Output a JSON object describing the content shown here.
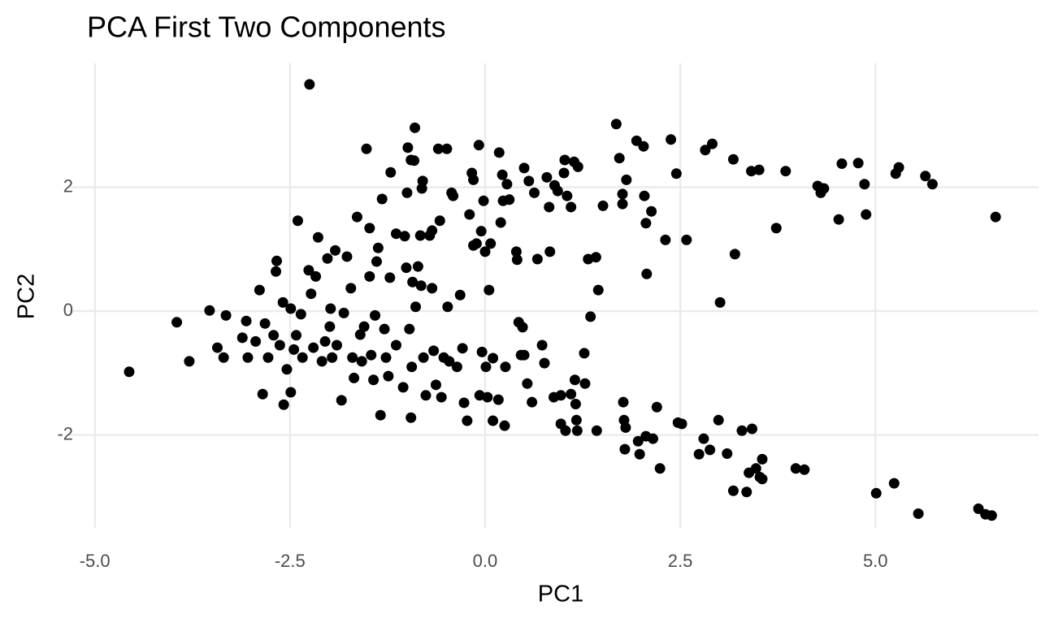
{
  "chart_data": {
    "type": "scatter",
    "title": "PCA First Two Components",
    "x_label": "PC1",
    "y_label": "PC2",
    "xlim": [
      -5.33,
      7.09
    ],
    "ylim": [
      -3.5,
      4.0
    ],
    "xticks": [
      {
        "value": -5.0,
        "label": "-5.0"
      },
      {
        "value": -2.5,
        "label": "-2.5"
      },
      {
        "value": 0.0,
        "label": "0.0"
      },
      2.5,
      {
        "value": 5.0,
        "label": "5.0"
      }
    ],
    "yticks": [
      -2,
      0,
      2
    ],
    "grid": true,
    "color": "#000000",
    "x": [
      -2.25,
      -4.56,
      -3.95,
      -3.79,
      -3.53,
      -3.32,
      -3.43,
      -3.35,
      -3.11,
      -3.06,
      -3.04,
      -2.94,
      -2.89,
      -2.85,
      -2.82,
      -2.78,
      -2.71,
      -2.68,
      -2.67,
      -2.63,
      -2.59,
      -2.58,
      -2.54,
      -2.49,
      -2.49,
      -2.45,
      -2.42,
      -2.4,
      -2.36,
      -2.34,
      -2.26,
      -2.23,
      -2.2,
      -2.17,
      -2.14,
      -2.09,
      -2.05,
      -2.02,
      -1.99,
      -1.98,
      -1.96,
      -1.92,
      -1.9,
      -1.84,
      -1.81,
      -1.77,
      -1.72,
      -1.7,
      -1.68,
      -1.64,
      -1.6,
      -1.58,
      -1.55,
      -1.52,
      -1.48,
      -1.48,
      -1.46,
      -1.43,
      -1.41,
      -1.39,
      -1.37,
      -1.34,
      -1.32,
      -1.29,
      -1.27,
      -1.24,
      -1.22,
      -1.21,
      -1.14,
      -1.14,
      -1.05,
      -1.03,
      -1.01,
      -1.0,
      -0.99,
      -0.97,
      -0.95,
      -0.94,
      -0.95,
      -0.93,
      -0.91,
      -0.9,
      -0.89,
      -0.86,
      -0.83,
      -0.82,
      -0.81,
      -0.8,
      -0.79,
      -0.76,
      -0.71,
      -0.68,
      -0.68,
      -0.66,
      -0.63,
      -0.6,
      -0.58,
      -0.56,
      -0.53,
      -0.49,
      -0.48,
      -0.46,
      -0.43,
      -0.41,
      -0.36,
      -0.32,
      -0.29,
      -0.27,
      -0.23,
      -0.2,
      -0.17,
      -0.15,
      -0.15,
      -0.11,
      -0.08,
      -0.07,
      -0.05,
      -0.04,
      -0.02,
      0,
      0.01,
      0.03,
      0.05,
      0.07,
      0.1,
      0.1,
      0.17,
      0.18,
      0.2,
      0.22,
      0.23,
      0.25,
      0.26,
      0.28,
      0.31,
      0.4,
      0.41,
      0.43,
      0.46,
      0.48,
      0.5,
      0.5,
      0.54,
      0.56,
      0.6,
      0.63,
      0.67,
      0.73,
      0.76,
      0.79,
      0.82,
      0.83,
      0.88,
      0.89,
      0.93,
      0.97,
      0.97,
      1.01,
      1.02,
      1.03,
      1.05,
      1.1,
      1.1,
      1.14,
      1.15,
      1.16,
      1.17,
      1.18,
      1.19,
      1.27,
      1.28,
      1.32,
      1.35,
      1.42,
      1.43,
      1.45,
      1.51,
      1.68,
      1.72,
      1.76,
      1.76,
      1.77,
      1.78,
      1.79,
      1.8,
      1.81,
      1.94,
      1.96,
      1.98,
      2.03,
      2.04,
      2.06,
      2.06,
      2.07,
      2.13,
      2.15,
      2.2,
      2.24,
      2.31,
      2.38,
      2.45,
      2.47,
      2.52,
      2.58,
      2.74,
      2.8,
      2.82,
      2.88,
      2.91,
      2.99,
      3.01,
      3.1,
      3.18,
      3.18,
      3.2,
      3.29,
      3.35,
      3.38,
      3.41,
      3.42,
      3.47,
      3.51,
      3.52,
      3.55,
      3.55,
      3.73,
      3.85,
      3.98,
      4.09,
      4.26,
      4.3,
      4.34,
      4.53,
      4.57,
      4.78,
      4.86,
      4.88,
      5.01,
      5.24,
      5.26,
      5.3,
      5.55,
      5.64,
      5.73,
      6.32,
      6.41,
      6.49,
      6.54
    ],
    "values": [
      3.66,
      -0.98,
      -0.18,
      -0.81,
      0.01,
      -0.07,
      -0.59,
      -0.75,
      -0.43,
      -0.16,
      -0.75,
      -0.49,
      0.34,
      -1.34,
      -0.2,
      -0.75,
      -0.39,
      0.64,
      0.81,
      -0.55,
      0.14,
      -1.51,
      -0.94,
      -1.31,
      0.04,
      -0.62,
      -0.39,
      1.46,
      -0.05,
      -0.75,
      0.66,
      0.28,
      -0.59,
      0.56,
      1.19,
      -0.81,
      -0.49,
      0.85,
      -0.25,
      0.04,
      -0.75,
      0.98,
      -0.55,
      -1.44,
      -0.03,
      0.88,
      0.37,
      -0.75,
      -1.08,
      1.52,
      -0.38,
      -0.81,
      -0.25,
      2.62,
      1.34,
      0.56,
      -0.71,
      -1.11,
      -0.07,
      0.8,
      1.02,
      -1.68,
      1.81,
      -0.29,
      -0.75,
      -1.05,
      0.54,
      2.24,
      1.25,
      -0.55,
      -1.23,
      1.21,
      0.7,
      1.91,
      2.64,
      -0.29,
      2.44,
      -0.9,
      -1.72,
      0.47,
      2.43,
      2.96,
      0.07,
      0.72,
      1.22,
      0.41,
      1.98,
      2.1,
      -0.75,
      -1.36,
      1.22,
      1.3,
      0.37,
      -0.64,
      -1.19,
      2.62,
      1.46,
      -1.39,
      -0.75,
      2.62,
      0.07,
      -0.81,
      1.91,
      1.86,
      -0.9,
      0.26,
      -0.6,
      -1.48,
      -1.77,
      1.56,
      2.23,
      2.12,
      1.06,
      1.09,
      2.68,
      -1.36,
      1.29,
      -0.66,
      1.78,
      0.96,
      -0.9,
      -1.39,
      0.34,
      1.09,
      -0.76,
      -1.77,
      -1.43,
      2.56,
      1.43,
      2.2,
      1.78,
      -1.85,
      -0.9,
      2.05,
      1.8,
      0.96,
      0.83,
      -0.18,
      -0.71,
      -0.26,
      -0.71,
      2.31,
      -1.17,
      2.1,
      -1.47,
      1.91,
      0.84,
      -0.55,
      -0.84,
      2.16,
      1.68,
      0.96,
      -1.39,
      2.03,
      1.94,
      -1.36,
      -1.82,
      2.23,
      2.44,
      -1.93,
      1.86,
      1.68,
      -1.34,
      2.41,
      -1.11,
      -1.5,
      -1.76,
      -1.93,
      2.33,
      -0.68,
      -1.17,
      0.84,
      -0.09,
      0.87,
      -1.93,
      0.34,
      1.7,
      3.02,
      2.47,
      1.73,
      1.89,
      -1.47,
      -1.76,
      -2.23,
      -1.88,
      2.12,
      2.75,
      -2.1,
      -2.31,
      2.66,
      1.86,
      1.42,
      -2.02,
      0.6,
      1.61,
      -2.06,
      -1.55,
      -2.54,
      1.15,
      2.77,
      2.22,
      -1.8,
      -1.82,
      1.15,
      -2.31,
      -2.06,
      2.6,
      -2.24,
      2.7,
      -1.76,
      0.14,
      -2.3,
      2.45,
      -2.9,
      0.92,
      -1.93,
      -2.92,
      -2.61,
      2.26,
      -1.9,
      -2.54,
      2.28,
      -2.68,
      -2.71,
      -2.39,
      1.34,
      2.26,
      -2.54,
      -2.56,
      2.02,
      1.91,
      1.98,
      1.48,
      2.38,
      2.39,
      2.05,
      1.56,
      -2.94,
      -2.78,
      2.22,
      2.32,
      -3.27,
      2.18,
      2.05,
      -3.19,
      -3.28,
      -3.3,
      1.52
    ]
  }
}
